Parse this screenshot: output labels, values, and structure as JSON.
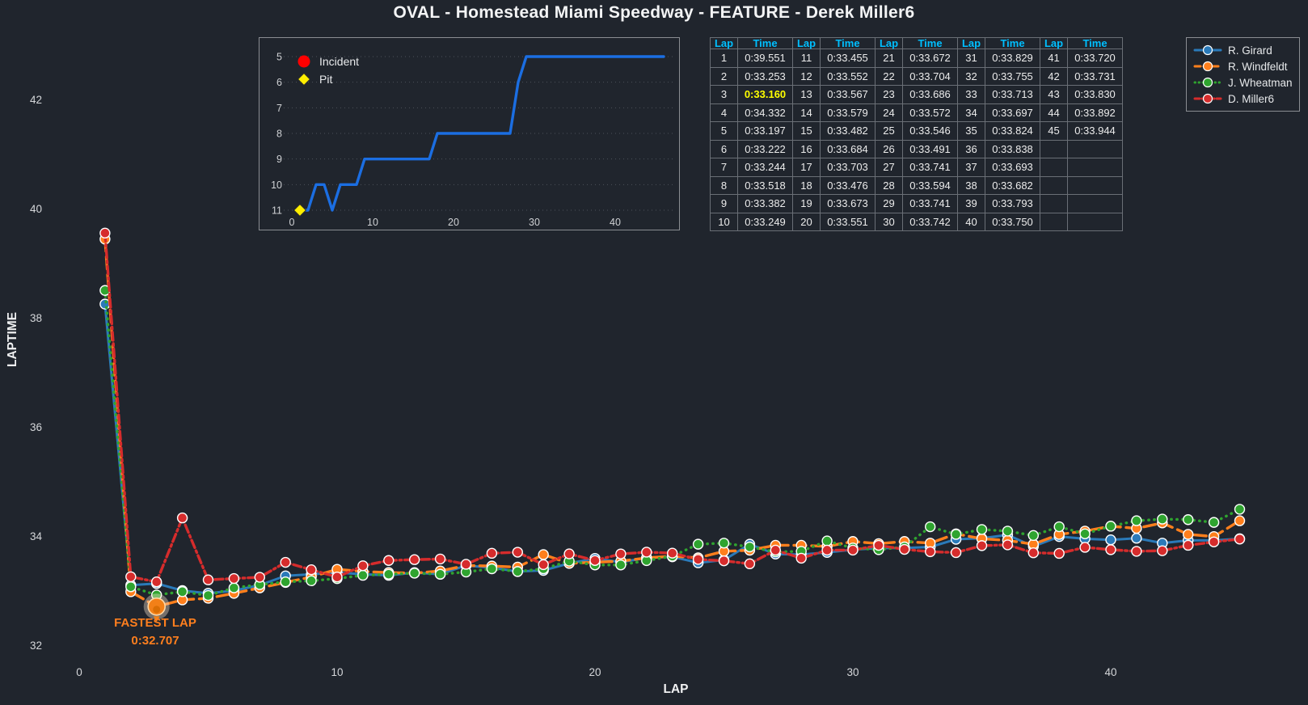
{
  "title": "OVAL - Homestead Miami Speedway - FEATURE - Derek Miller6",
  "colors": {
    "background": "#20252d",
    "table_header": "#00bfff",
    "fastest_lap_highlight": "#ffff00",
    "fastest_lap_annotation": "#ff7f1e",
    "incident_marker": "#ff0000",
    "pit_marker": "#ffee00",
    "position_line": "#1b6ee2"
  },
  "chart_data": [
    {
      "type": "line",
      "name": "laptime-chart",
      "xlabel": "LAP",
      "ylabel": "LAPTIME",
      "xticks": [
        0,
        10,
        20,
        30,
        40
      ],
      "yticks": [
        32,
        34,
        36,
        38,
        40,
        42
      ],
      "xlim": [
        0,
        47
      ],
      "ylim": [
        31.4,
        43.4
      ],
      "grid": false,
      "x_start": 1,
      "x_step": 1,
      "series": [
        {
          "name": "R. Girard",
          "color": "#2a7ab9",
          "style": "solid",
          "values": [
            38.25,
            33.1,
            33.13,
            33.0,
            32.95,
            33.0,
            33.1,
            33.27,
            33.3,
            33.33,
            33.3,
            33.28,
            33.33,
            33.3,
            33.46,
            33.42,
            33.35,
            33.37,
            33.5,
            33.59,
            33.52,
            33.6,
            33.62,
            33.51,
            33.56,
            33.85,
            33.67,
            33.66,
            33.7,
            33.75,
            33.78,
            33.78,
            33.8,
            33.94,
            33.96,
            34.02,
            33.81,
            33.99,
            33.95,
            33.93,
            33.96,
            33.87,
            33.92,
            33.92,
            33.95
          ]
        },
        {
          "name": "R. Windfeldt",
          "color": "#ff7f1c",
          "style": "dashed",
          "values": [
            39.44,
            32.98,
            32.707,
            32.83,
            32.86,
            32.95,
            33.05,
            33.15,
            33.25,
            33.39,
            33.35,
            33.33,
            33.32,
            33.36,
            33.46,
            33.45,
            33.43,
            33.66,
            33.5,
            33.52,
            33.54,
            33.6,
            33.63,
            33.6,
            33.72,
            33.74,
            33.83,
            33.83,
            33.81,
            33.9,
            33.86,
            33.9,
            33.87,
            34.04,
            33.95,
            33.92,
            33.85,
            34.03,
            34.09,
            34.18,
            34.14,
            34.24,
            34.03,
            33.99,
            34.28
          ]
        },
        {
          "name": "J. Wheatman",
          "color": "#2fa42f",
          "style": "dotted",
          "values": [
            38.5,
            33.07,
            32.92,
            32.98,
            32.91,
            33.05,
            33.11,
            33.16,
            33.18,
            33.22,
            33.28,
            33.3,
            33.32,
            33.3,
            33.34,
            33.4,
            33.35,
            33.4,
            33.54,
            33.47,
            33.47,
            33.55,
            33.63,
            33.85,
            33.87,
            33.8,
            33.71,
            33.72,
            33.91,
            33.78,
            33.75,
            33.8,
            34.17,
            34.03,
            34.12,
            34.09,
            34.01,
            34.17,
            34.04,
            34.18,
            34.28,
            34.31,
            34.3,
            34.25,
            34.49
          ]
        },
        {
          "name": "D. Miller6",
          "color": "#d62c2c",
          "style": "dashdot",
          "values": [
            39.551,
            33.253,
            33.16,
            34.332,
            33.197,
            33.222,
            33.244,
            33.518,
            33.382,
            33.249,
            33.455,
            33.552,
            33.567,
            33.579,
            33.482,
            33.684,
            33.703,
            33.476,
            33.673,
            33.551,
            33.672,
            33.704,
            33.686,
            33.572,
            33.546,
            33.491,
            33.741,
            33.594,
            33.741,
            33.742,
            33.829,
            33.755,
            33.713,
            33.697,
            33.824,
            33.838,
            33.693,
            33.682,
            33.793,
            33.75,
            33.72,
            33.731,
            33.83,
            33.892,
            33.944
          ]
        }
      ],
      "annotation": {
        "label": "FASTEST LAP",
        "value": "0:32.707",
        "series": "R. Windfeldt",
        "lap": 3,
        "laptime": 32.707
      }
    },
    {
      "type": "line",
      "name": "position-chart",
      "y_inverted": true,
      "xticks": [
        0,
        10,
        20,
        30,
        40
      ],
      "yticks": [
        5,
        6,
        7,
        8,
        9,
        10,
        11
      ],
      "grid": "horizontal-dotted",
      "x_start": 1,
      "x_step": 1,
      "series": [
        {
          "name": "Position",
          "color": "#1b6ee2",
          "style": "solid",
          "values": [
            11,
            11,
            10,
            10,
            11,
            10,
            10,
            10,
            9,
            9,
            9,
            9,
            9,
            9,
            9,
            9,
            9,
            8,
            8,
            8,
            8,
            8,
            8,
            8,
            8,
            8,
            8,
            6,
            5,
            5,
            5,
            5,
            5,
            5,
            5,
            5,
            5,
            5,
            5,
            5,
            5,
            5,
            5,
            5,
            5,
            5
          ]
        }
      ],
      "event_markers": [
        {
          "type": "pit",
          "shape": "diamond",
          "color": "#ffee00",
          "lap": 1,
          "position": 11
        }
      ],
      "legend": [
        {
          "label": "Incident",
          "shape": "circle",
          "color": "#ff0000"
        },
        {
          "label": "Pit",
          "shape": "diamond",
          "color": "#ffee00"
        }
      ],
      "legend_position": "upper-left"
    }
  ],
  "lap_table": {
    "headers": [
      "Lap",
      "Time"
    ],
    "pairs": 5,
    "rows_per_pair": 10,
    "laps": [
      1,
      2,
      3,
      4,
      5,
      6,
      7,
      8,
      9,
      10,
      11,
      12,
      13,
      14,
      15,
      16,
      17,
      18,
      19,
      20,
      21,
      22,
      23,
      24,
      25,
      26,
      27,
      28,
      29,
      30,
      31,
      32,
      33,
      34,
      35,
      36,
      37,
      38,
      39,
      40,
      41,
      42,
      43,
      44,
      45
    ],
    "times": [
      "0:39.551",
      "0:33.253",
      "0:33.160",
      "0:34.332",
      "0:33.197",
      "0:33.222",
      "0:33.244",
      "0:33.518",
      "0:33.382",
      "0:33.249",
      "0:33.455",
      "0:33.552",
      "0:33.567",
      "0:33.579",
      "0:33.482",
      "0:33.684",
      "0:33.703",
      "0:33.476",
      "0:33.673",
      "0:33.551",
      "0:33.672",
      "0:33.704",
      "0:33.686",
      "0:33.572",
      "0:33.546",
      "0:33.491",
      "0:33.741",
      "0:33.594",
      "0:33.741",
      "0:33.742",
      "0:33.829",
      "0:33.755",
      "0:33.713",
      "0:33.697",
      "0:33.824",
      "0:33.838",
      "0:33.693",
      "0:33.682",
      "0:33.793",
      "0:33.750",
      "0:33.720",
      "0:33.731",
      "0:33.830",
      "0:33.892",
      "0:33.944"
    ],
    "highlight": {
      "lap": 3,
      "time": "0:33.160"
    }
  },
  "fastest_lap": {
    "label": "FASTEST LAP",
    "value": "0:32.707"
  }
}
